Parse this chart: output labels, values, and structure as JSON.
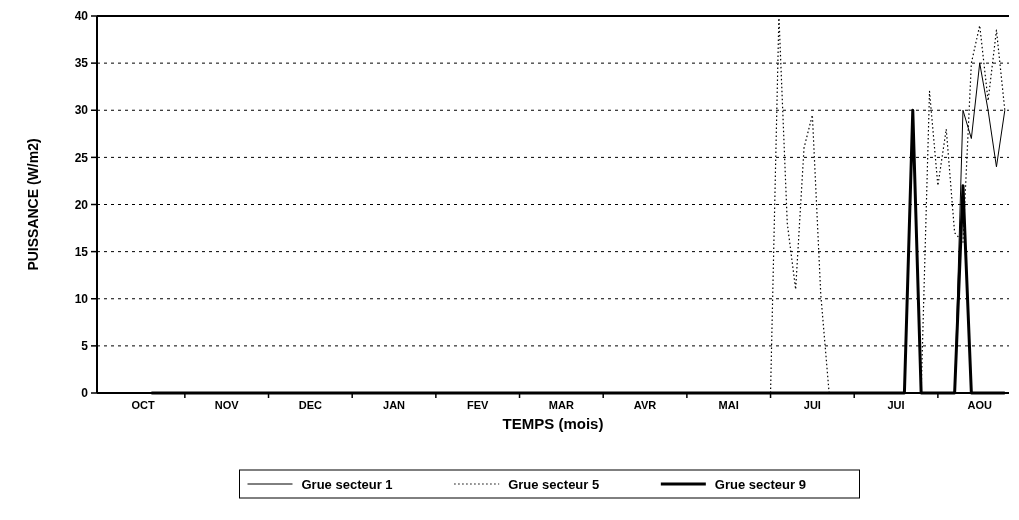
{
  "chart_data": {
    "type": "line",
    "xlabel": "TEMPS (mois)",
    "ylabel": "PUISSANCE (W/m2)",
    "categories": [
      null,
      null,
      null,
      null,
      null,
      "OCT",
      null,
      null,
      null,
      null,
      null,
      null,
      null,
      null,
      null,
      "NOV",
      null,
      null,
      null,
      null,
      null,
      null,
      null,
      null,
      null,
      "DEC",
      null,
      null,
      null,
      null,
      null,
      null,
      null,
      null,
      null,
      "JAN",
      null,
      null,
      null,
      null,
      null,
      null,
      null,
      null,
      null,
      "FEV",
      null,
      null,
      null,
      null,
      null,
      null,
      null,
      null,
      null,
      "MAR",
      null,
      null,
      null,
      null,
      null,
      null,
      null,
      null,
      null,
      "AVR",
      null,
      null,
      null,
      null,
      null,
      null,
      null,
      null,
      null,
      "MAI",
      null,
      null,
      null,
      null,
      null,
      null,
      null,
      null,
      null,
      "JUI",
      null,
      null,
      null,
      null,
      null,
      null,
      null,
      null,
      null,
      "JUI",
      null,
      null,
      null,
      null,
      null,
      null,
      null,
      null,
      null,
      "AOU",
      null,
      null,
      null
    ],
    "ylim": [
      0,
      40
    ],
    "yticks": [
      0,
      5,
      10,
      15,
      20,
      25,
      30,
      35,
      40
    ],
    "grid": "y",
    "legend": "bottom",
    "series": [
      {
        "name": "Grue secteur 1",
        "color": "#000000",
        "line_style": "solid",
        "values": [
          0,
          0,
          0,
          0,
          0,
          0,
          0,
          0,
          0,
          0,
          0,
          0,
          0,
          0,
          0,
          0,
          0,
          0,
          0,
          0,
          0,
          0,
          0,
          0,
          0,
          0,
          0,
          0,
          0,
          0,
          0,
          0,
          0,
          0,
          0,
          0,
          0,
          0,
          0,
          0,
          0,
          0,
          0,
          0,
          0,
          0,
          0,
          0,
          0,
          0,
          0,
          0,
          0,
          0,
          0,
          0,
          0,
          0,
          0,
          0,
          0,
          0,
          0,
          0,
          0,
          0,
          0,
          0,
          0,
          0,
          0,
          0,
          0,
          0,
          0,
          0,
          0,
          0,
          0,
          0,
          0,
          0,
          0,
          0,
          0,
          0,
          0,
          0,
          0,
          0,
          0,
          0,
          0,
          0,
          0,
          0,
          0,
          0,
          0,
          0,
          0,
          0,
          0,
          30,
          27,
          35,
          30,
          24,
          30
        ]
      },
      {
        "name": "Grue secteur 5",
        "color": "#000000",
        "line_style": "dotted",
        "values": [
          null,
          null,
          null,
          null,
          null,
          null,
          null,
          null,
          null,
          null,
          null,
          null,
          null,
          null,
          null,
          null,
          null,
          null,
          null,
          null,
          null,
          null,
          null,
          null,
          null,
          null,
          null,
          null,
          null,
          null,
          null,
          null,
          null,
          null,
          null,
          null,
          null,
          null,
          null,
          null,
          null,
          null,
          null,
          null,
          null,
          null,
          null,
          null,
          null,
          null,
          null,
          null,
          null,
          null,
          null,
          null,
          null,
          null,
          null,
          null,
          null,
          null,
          null,
          null,
          null,
          null,
          null,
          null,
          null,
          null,
          null,
          null,
          null,
          null,
          null,
          null,
          null,
          null,
          null,
          null,
          0,
          40,
          18,
          11,
          26,
          29.5,
          10.5,
          0,
          0,
          0,
          0,
          0,
          0,
          0,
          0,
          0,
          0,
          30,
          0,
          32,
          22,
          28,
          17,
          16,
          35,
          39,
          31,
          38.5,
          30
        ]
      },
      {
        "name": "Grue secteur 9",
        "color": "#000000",
        "line_style": "solid",
        "values": [
          null,
          null,
          null,
          null,
          null,
          null,
          0,
          0,
          0,
          0,
          0,
          0,
          0,
          0,
          0,
          0,
          0,
          0,
          0,
          0,
          0,
          0,
          0,
          0,
          0,
          0,
          0,
          0,
          0,
          0,
          0,
          0,
          0,
          0,
          0,
          0,
          0,
          0,
          0,
          0,
          0,
          0,
          0,
          0,
          0,
          0,
          0,
          0,
          0,
          0,
          0,
          0,
          0,
          0,
          0,
          0,
          0,
          0,
          0,
          0,
          0,
          0,
          0,
          0,
          0,
          0,
          0,
          0,
          0,
          0,
          0,
          0,
          0,
          0,
          0,
          0,
          0,
          0,
          0,
          0,
          0,
          0,
          0,
          0,
          0,
          0,
          0,
          0,
          0,
          0,
          0,
          0,
          0,
          0,
          0,
          0,
          0,
          30,
          0,
          0,
          0,
          0,
          0,
          22,
          0,
          0,
          0,
          0,
          0
        ]
      }
    ]
  }
}
